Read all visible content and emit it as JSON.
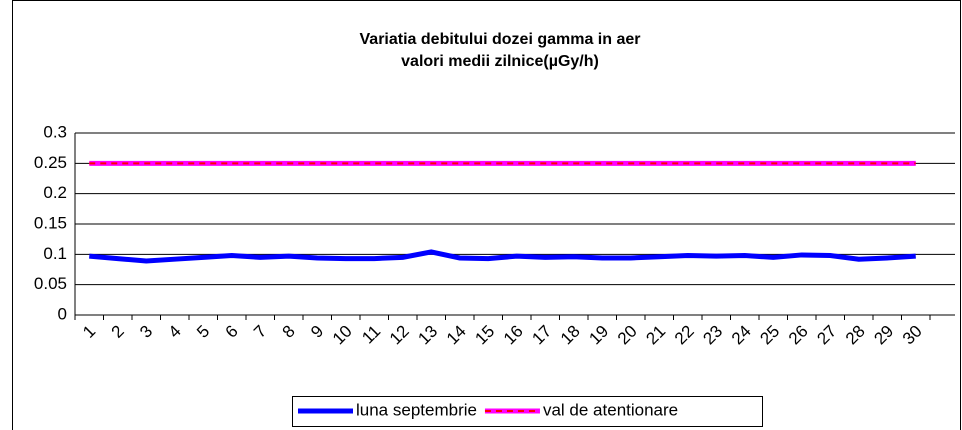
{
  "chart_data": {
    "type": "line",
    "title": "Variatia debitului dozei gamma in aer",
    "subtitle": "valori medii zilnice(µGy/h)",
    "categories": [
      "1",
      "2",
      "3",
      "4",
      "5",
      "6",
      "7",
      "8",
      "9",
      "10",
      "11",
      "12",
      "13",
      "14",
      "15",
      "16",
      "17",
      "18",
      "19",
      "20",
      "21",
      "22",
      "23",
      "24",
      "25",
      "26",
      "27",
      "28",
      "29",
      "30"
    ],
    "series": [
      {
        "name": "luna septembrie",
        "color": "#0000ff",
        "values": [
          0.097,
          0.093,
          0.089,
          0.092,
          0.095,
          0.098,
          0.095,
          0.097,
          0.094,
          0.093,
          0.093,
          0.095,
          0.104,
          0.094,
          0.093,
          0.097,
          0.095,
          0.096,
          0.094,
          0.094,
          0.096,
          0.098,
          0.097,
          0.098,
          0.095,
          0.099,
          0.098,
          0.092,
          0.094,
          0.097
        ]
      },
      {
        "name": "val de atentionare",
        "color": "#ff00ff",
        "dash_color": "#ff0000",
        "values": [
          0.25,
          0.25,
          0.25,
          0.25,
          0.25,
          0.25,
          0.25,
          0.25,
          0.25,
          0.25,
          0.25,
          0.25,
          0.25,
          0.25,
          0.25,
          0.25,
          0.25,
          0.25,
          0.25,
          0.25,
          0.25,
          0.25,
          0.25,
          0.25,
          0.25,
          0.25,
          0.25,
          0.25,
          0.25,
          0.25
        ]
      }
    ],
    "ylim": [
      0,
      0.3
    ],
    "yticks": [
      0,
      0.05,
      0.1,
      0.15,
      0.2,
      0.25,
      0.3
    ],
    "grid": true,
    "legend": "bottom"
  }
}
